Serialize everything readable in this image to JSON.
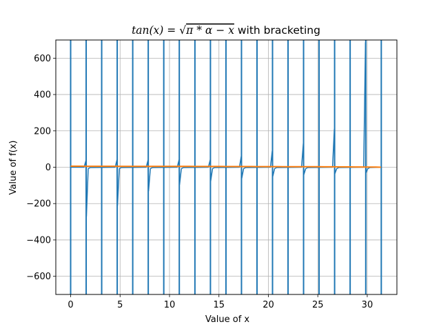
{
  "chart_data": {
    "type": "line",
    "title_parts": {
      "lhs": "tan(x) = ",
      "sqrt_symbol": "√",
      "radicand": "π * α − x",
      "suffix": " with bracketing"
    },
    "xlabel": "Value of x",
    "ylabel": "Value of f(x)",
    "xlim": [
      -1.5,
      33
    ],
    "ylim": [
      -700,
      700
    ],
    "xticks": [
      0,
      5,
      10,
      15,
      20,
      25,
      30
    ],
    "yticks": [
      -600,
      -400,
      -200,
      0,
      200,
      400,
      600
    ],
    "grid": true,
    "domain": [
      0,
      31.4
    ],
    "tan_color": "#1f77b4",
    "sqrt_color": "#ff7f0e",
    "bracket_color": "#1f77b4",
    "bracket_x": [
      0,
      1.57,
      3.14,
      4.71,
      6.28,
      7.85,
      9.42,
      10.99,
      12.57,
      14.14,
      15.71,
      17.28,
      18.85,
      20.42,
      21.99,
      23.56,
      25.13,
      26.7,
      28.27,
      29.85,
      31.42
    ],
    "series": [
      {
        "function": "tan(x)",
        "spike_x": [
          1.57,
          4.71,
          7.85,
          10.99,
          14.14,
          17.28,
          20.42,
          23.56,
          26.7,
          29.85
        ],
        "spike_top": [
          35,
          40,
          38,
          40,
          40,
          60,
          90,
          130,
          210,
          685
        ],
        "spike_bottom": [
          -270,
          -210,
          -130,
          -95,
          -75,
          -60,
          -50,
          -40,
          -35,
          -30
        ]
      },
      {
        "function": "sqrt(pi*alpha - x)",
        "x": [
          0,
          31.4
        ],
        "values": [
          5.6,
          0
        ]
      }
    ]
  }
}
